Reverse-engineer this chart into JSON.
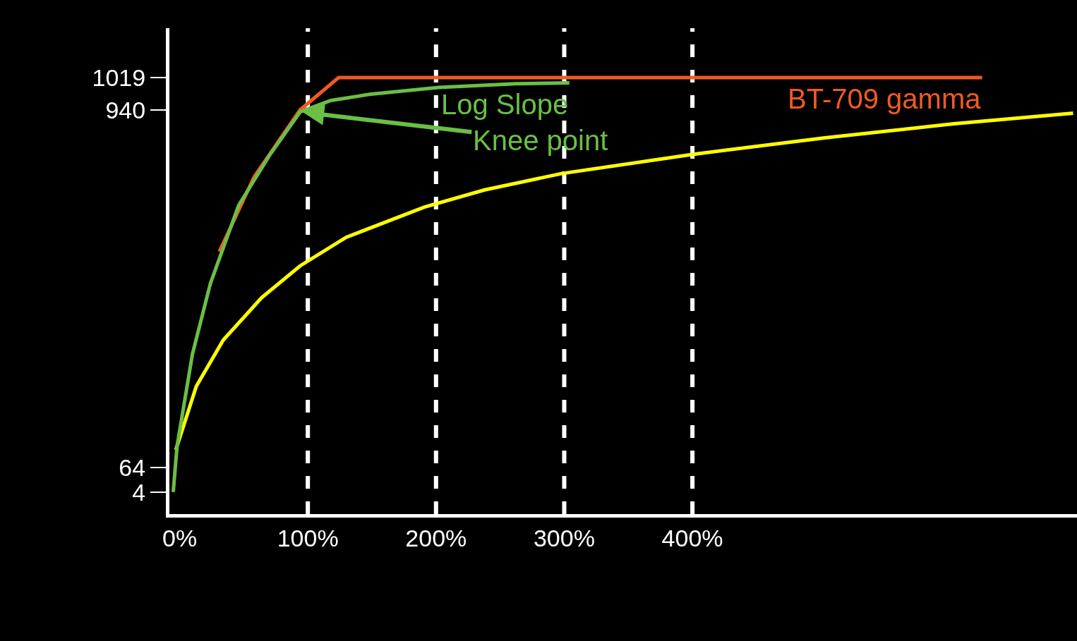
{
  "chart_data": {
    "type": "line",
    "xlim": [
      -8,
      700
    ],
    "ylim": [
      -50,
      1140
    ],
    "xticks": [
      {
        "value": 0,
        "label": "0%"
      },
      {
        "value": 100,
        "label": "100%"
      },
      {
        "value": 200,
        "label": "200%"
      },
      {
        "value": 300,
        "label": "300%"
      },
      {
        "value": 400,
        "label": "400%"
      }
    ],
    "yticks": [
      4,
      64,
      940,
      1019
    ],
    "grid": false,
    "legend": false,
    "marker": "none",
    "line_style": "solid",
    "ref_lines": [
      {
        "axis": "x",
        "value": 100,
        "color": "#ffffff",
        "line_style": "dashed"
      },
      {
        "axis": "x",
        "value": 200,
        "color": "#ffffff",
        "line_style": "dashed"
      },
      {
        "axis": "x",
        "value": 300,
        "color": "#ffffff",
        "line_style": "dashed"
      },
      {
        "axis": "x",
        "value": 400,
        "color": "#ffffff",
        "line_style": "dashed"
      }
    ],
    "annotations": [
      {
        "text": "Knee point",
        "x": 94,
        "y": 935
      }
    ],
    "series": [
      {
        "name": "BT-709 gamma",
        "color": "#f05a22",
        "x": [
          31,
          58,
          94,
          124,
          626
        ],
        "values": [
          593,
          775,
          940,
          1019,
          1019
        ]
      },
      {
        "color": "#ffff00",
        "x": [
          -3,
          13,
          34,
          64,
          94,
          130,
          191,
          238,
          298,
          400,
          502,
          604,
          697
        ],
        "values": [
          107,
          263,
          376,
          480,
          558,
          628,
          702,
          744,
          784,
          831,
          871,
          906,
          932
        ]
      },
      {
        "name": "Log Slope",
        "color": "#6abf45",
        "x": [
          -5,
          -2,
          10,
          24,
          46,
          70,
          94,
          118,
          148,
          202,
          262,
          304
        ],
        "values": [
          4,
          116,
          342,
          515,
          706,
          828,
          935,
          963,
          978,
          995,
          1004,
          1006
        ]
      }
    ]
  }
}
